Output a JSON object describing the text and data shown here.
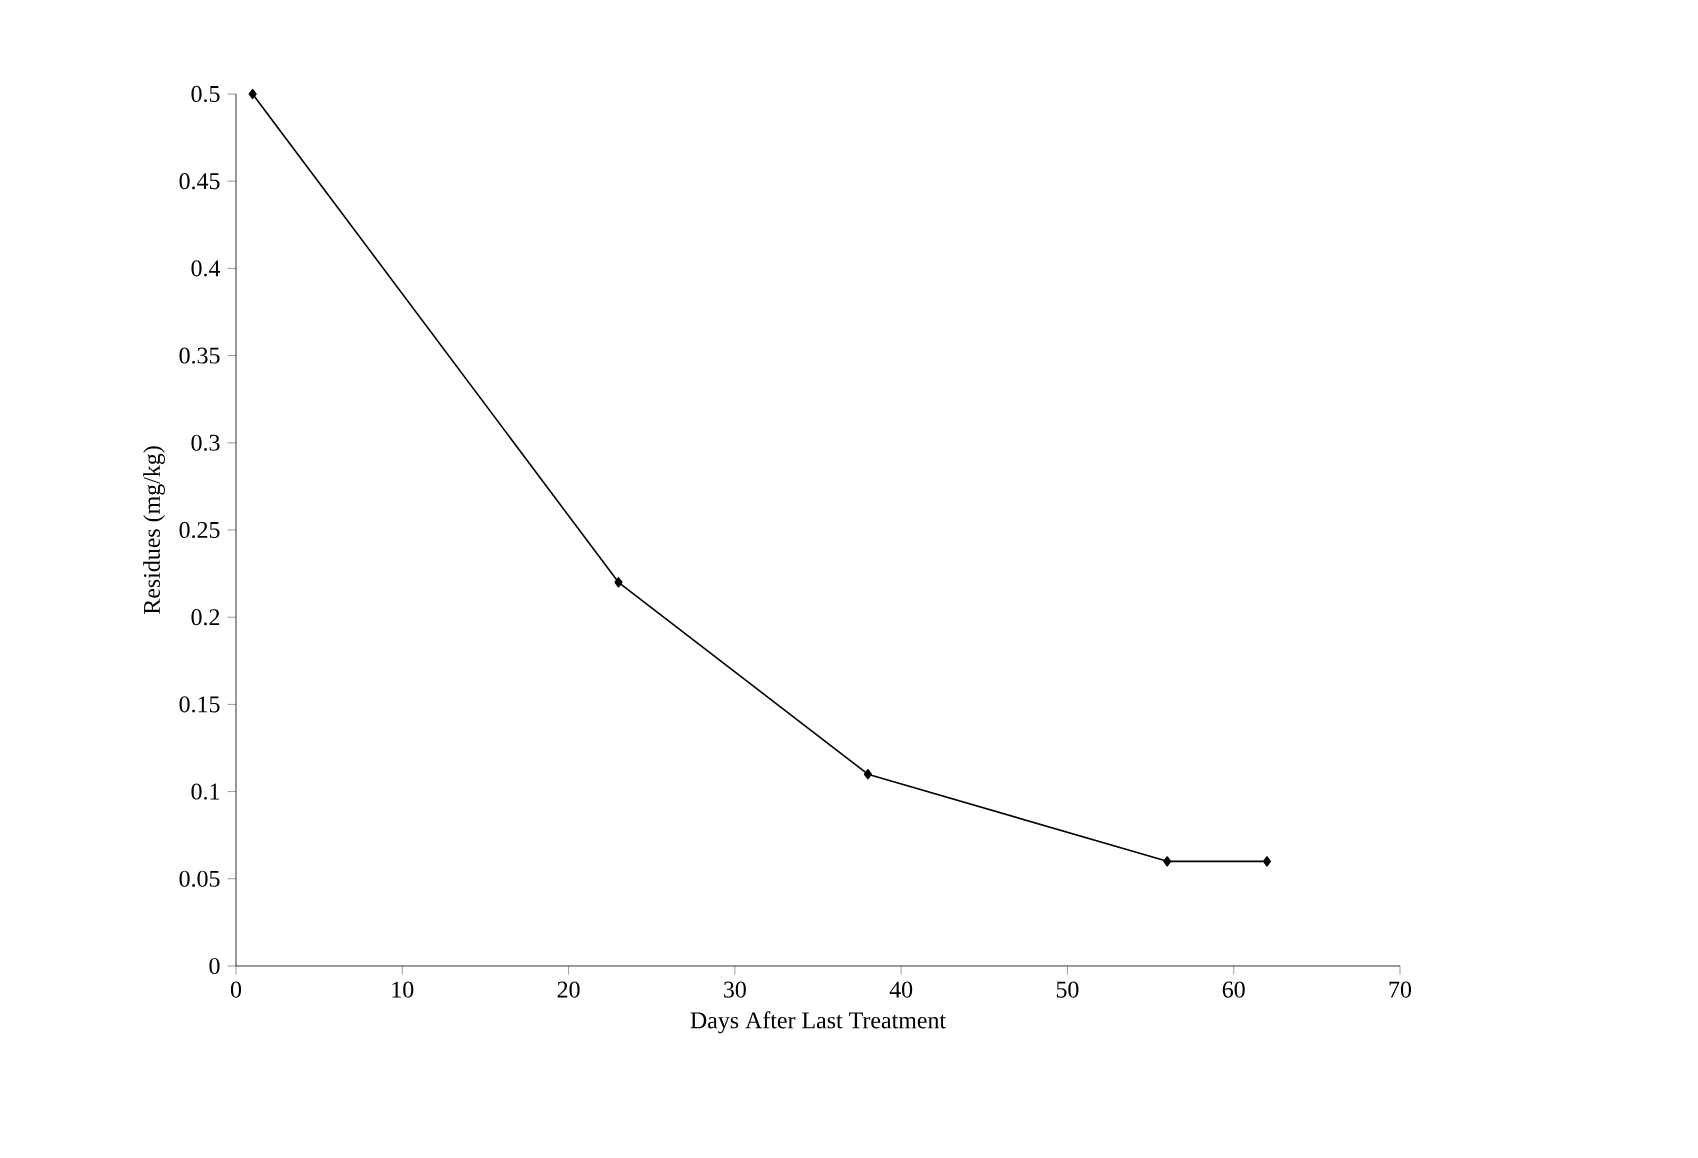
{
  "chart_data": {
    "type": "line",
    "xlabel": "Days After Last Treatment",
    "ylabel": "Residues (mg/kg)",
    "x": [
      1,
      23,
      38,
      56,
      62
    ],
    "series": [
      {
        "color": "#000000",
        "values": [
          0.5,
          0.22,
          0.11,
          0.06,
          0.06
        ]
      }
    ],
    "xlim": [
      0,
      70
    ],
    "xticks": [
      0,
      10,
      20,
      30,
      40,
      50,
      60,
      70
    ],
    "ylim": [
      0,
      0.5
    ],
    "yticks": [
      0,
      0.05,
      0.1,
      0.15,
      0.2,
      0.25,
      0.3,
      0.35,
      0.4,
      0.45,
      0.5
    ],
    "marker": "diamond",
    "line_style": "solid"
  }
}
